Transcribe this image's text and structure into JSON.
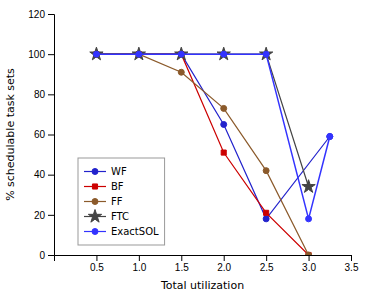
{
  "chart_data": {
    "type": "line",
    "xlabel": "Total utilization",
    "ylabel": "% schedulable task sets",
    "xlim": [
      0,
      3.5
    ],
    "ylim": [
      0,
      120
    ],
    "xticks": [
      0.5,
      {
        "value": 1,
        "label": "1.0"
      },
      1.5,
      {
        "value": 2,
        "label": "2.0"
      },
      2.5,
      {
        "value": 3,
        "label": "3.0"
      },
      3.5
    ],
    "yticks": [
      0,
      20,
      40,
      60,
      80,
      100,
      120
    ],
    "legend": "lower left",
    "grid": false,
    "series": [
      {
        "name": "WF",
        "color": "#2222cc",
        "marker": "circle",
        "line_style": "solid",
        "x": [
          0.5,
          1.0,
          1.5,
          2.0,
          2.5,
          3.25
        ],
        "values": [
          100,
          100,
          100,
          65,
          18,
          59
        ]
      },
      {
        "name": "BF",
        "color": "#cc0000",
        "marker": "square",
        "line_style": "solid",
        "x": [
          0.5,
          1.0,
          1.5,
          2.0,
          2.5,
          3.0
        ],
        "values": [
          100,
          100,
          100,
          51,
          21,
          0
        ]
      },
      {
        "name": "FF",
        "color": "#8B5A2B",
        "marker": "circle",
        "line_style": "solid",
        "x": [
          0.5,
          1.0,
          1.5,
          2.0,
          2.5,
          3.0
        ],
        "values": [
          100,
          100,
          91,
          73,
          42,
          0
        ]
      },
      {
        "name": "FTC",
        "color": "#444444",
        "marker": "star",
        "line_style": "solid",
        "x": [
          0.5,
          1.0,
          1.5,
          2.0,
          2.5,
          3.0
        ],
        "values": [
          100,
          100,
          100,
          100,
          100,
          34
        ]
      },
      {
        "name": "ExactSOL",
        "color": "#3333ff",
        "marker": "circle",
        "line_style": "solid",
        "x": [
          0.5,
          1.0,
          1.5,
          2.0,
          2.5,
          3.0,
          3.25
        ],
        "values": [
          100,
          100,
          100,
          100,
          100,
          18,
          59
        ]
      }
    ]
  }
}
